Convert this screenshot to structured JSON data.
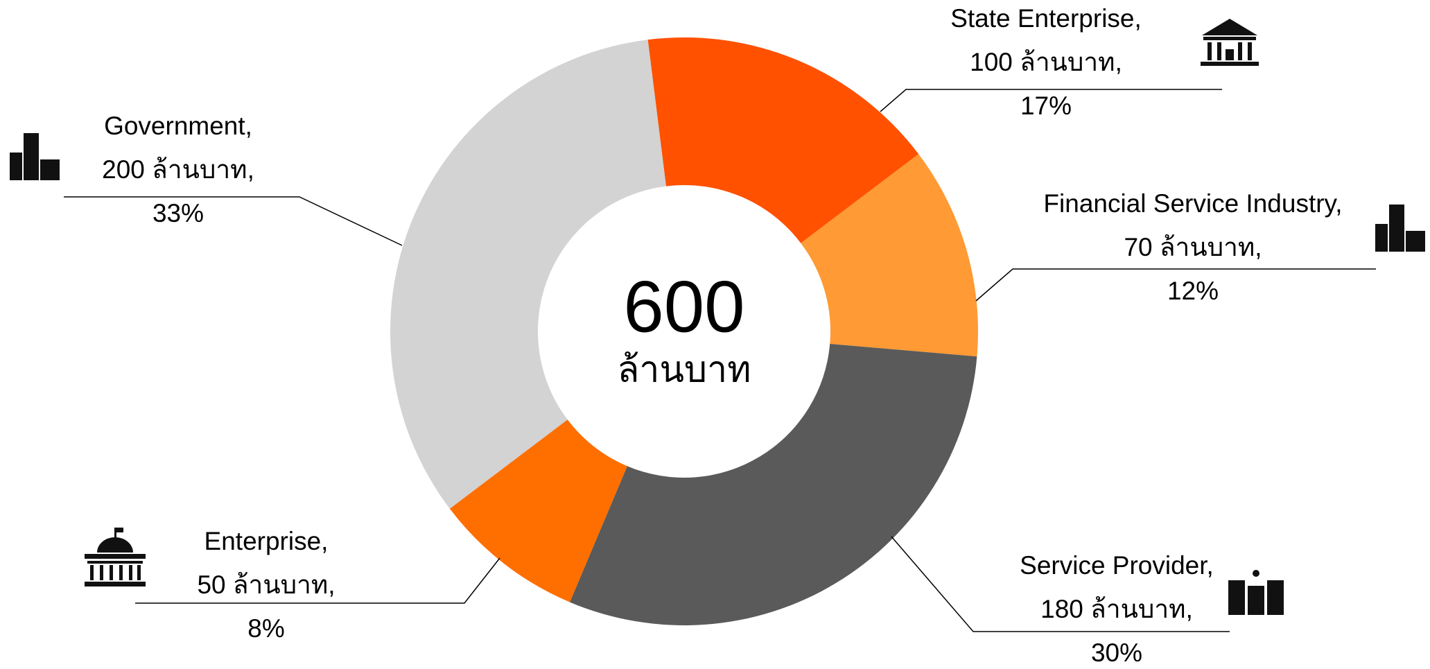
{
  "chart_data": {
    "type": "donut",
    "categories": [
      "State Enterprise,",
      "Financial Service Industry,",
      "Service Provider,",
      "Enterprise,",
      "Government,"
    ],
    "values": [
      100,
      70,
      180,
      50,
      200
    ],
    "value_labels": [
      "100 ล้านบาท,",
      "70 ล้านบาท,",
      "180 ล้านบาท,",
      "50 ล้านบาท,",
      "200 ล้านบาท,"
    ],
    "percent_labels": [
      "17%",
      "12%",
      "30%",
      "8%",
      "33%"
    ],
    "colors": [
      "#FF5100",
      "#FF9A35",
      "#5A5A5A",
      "#FF6F00",
      "#D3D3D3"
    ],
    "center_value": 600,
    "center_label": "ล้านบาท"
  }
}
